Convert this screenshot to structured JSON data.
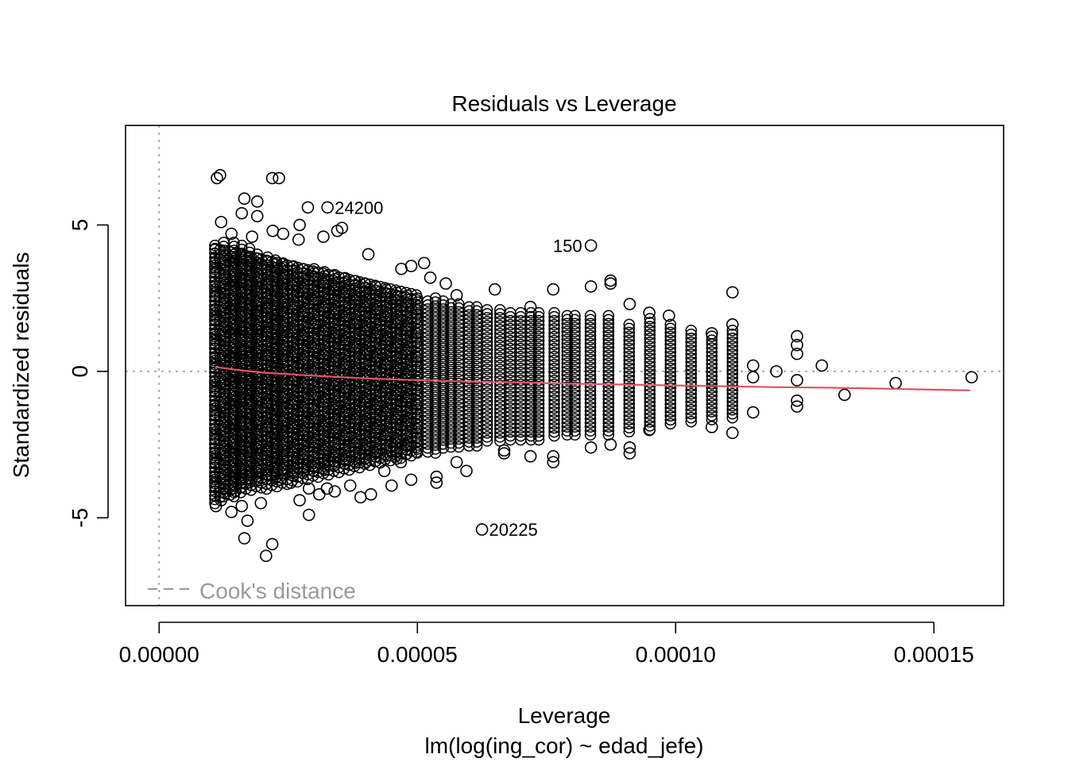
{
  "chart_data": {
    "type": "scatter",
    "title": "Residuals vs Leverage",
    "xlabel": "Leverage",
    "subtitle": "lm(log(ing_cor) ~ edad_jefe)",
    "ylabel": "Standardized residuals",
    "xlim": [
      -6.5e-06,
      0.0001635
    ],
    "ylim": [
      -8.0,
      8.4
    ],
    "x_ticks": [
      0.0,
      5e-05,
      0.0001,
      0.00015
    ],
    "x_tick_labels": [
      "0.00000",
      "0.00005",
      "0.00010",
      "0.00015"
    ],
    "y_ticks": [
      -5,
      0,
      5
    ],
    "y_tick_labels": [
      "-5",
      "0",
      "5"
    ],
    "reference_lines": {
      "x": 0,
      "y": 0,
      "style": "dotted",
      "color": "#aaaaaa"
    },
    "legend": {
      "label": "Cook's distance",
      "position": "bottom-left",
      "line_style": "dashed",
      "color": "#999999"
    },
    "point_color": "#000000",
    "smooth_color": "#DF536B",
    "smooth_line": {
      "x": [
        1.08e-05,
        1.5e-05,
        2e-05,
        3e-05,
        4e-05,
        5e-05,
        6e-05,
        7e-05,
        8e-05,
        9e-05,
        0.0001,
        0.00011,
        0.00012,
        0.00013,
        0.00014,
        0.000157
      ],
      "y": [
        0.15,
        0.05,
        -0.04,
        -0.15,
        -0.24,
        -0.3,
        -0.35,
        -0.38,
        -0.42,
        -0.45,
        -0.48,
        -0.51,
        -0.54,
        -0.56,
        -0.59,
        -0.65
      ]
    },
    "bands": [
      {
        "x": 1.08e-05,
        "lo": -4.6,
        "hi": 4.3
      },
      {
        "x": 1.25e-05,
        "lo": -4.4,
        "hi": 4.4
      },
      {
        "x": 1.45e-05,
        "lo": -4.3,
        "hi": 4.4
      },
      {
        "x": 1.6e-05,
        "lo": -4.0,
        "hi": 4.3
      },
      {
        "x": 1.75e-05,
        "lo": -3.9,
        "hi": 4.2
      },
      {
        "x": 1.9e-05,
        "lo": -3.8,
        "hi": 4.0
      },
      {
        "x": 2.1e-05,
        "lo": -3.7,
        "hi": 3.9
      },
      {
        "x": 2.25e-05,
        "lo": -3.7,
        "hi": 3.8
      },
      {
        "x": 2.4e-05,
        "lo": -3.6,
        "hi": 3.7
      },
      {
        "x": 2.6e-05,
        "lo": -3.6,
        "hi": 3.6
      },
      {
        "x": 2.8e-05,
        "lo": -3.5,
        "hi": 3.5
      },
      {
        "x": 3e-05,
        "lo": -3.5,
        "hi": 3.5
      },
      {
        "x": 3.2e-05,
        "lo": -3.4,
        "hi": 3.4
      },
      {
        "x": 3.4e-05,
        "lo": -3.3,
        "hi": 3.3
      },
      {
        "x": 3.6e-05,
        "lo": -3.2,
        "hi": 3.2
      },
      {
        "x": 3.8e-05,
        "lo": -3.2,
        "hi": 3.1
      },
      {
        "x": 4e-05,
        "lo": -3.1,
        "hi": 3.0
      },
      {
        "x": 4.2e-05,
        "lo": -3.1,
        "hi": 2.9
      },
      {
        "x": 4.4e-05,
        "lo": -3.0,
        "hi": 2.8
      },
      {
        "x": 4.6e-05,
        "lo": -3.0,
        "hi": 2.7
      },
      {
        "x": 4.8e-05,
        "lo": -2.9,
        "hi": 2.6
      },
      {
        "x": 5e-05,
        "lo": -2.9,
        "hi": 2.5
      },
      {
        "x": 5.2e-05,
        "lo": -2.8,
        "hi": 2.4
      },
      {
        "x": 5.35e-05,
        "lo": -2.8,
        "hi": 2.5
      },
      {
        "x": 5.5e-05,
        "lo": -2.7,
        "hi": 2.4
      },
      {
        "x": 5.65e-05,
        "lo": -2.7,
        "hi": 2.3
      },
      {
        "x": 5.8e-05,
        "lo": -2.6,
        "hi": 2.3
      },
      {
        "x": 6e-05,
        "lo": -2.6,
        "hi": 2.2
      },
      {
        "x": 6.15e-05,
        "lo": -2.6,
        "hi": 2.2
      },
      {
        "x": 6.35e-05,
        "lo": -2.5,
        "hi": 2.1
      },
      {
        "x": 6.6e-05,
        "lo": -2.5,
        "hi": 2.1
      },
      {
        "x": 6.8e-05,
        "lo": -2.4,
        "hi": 2.0
      },
      {
        "x": 7e-05,
        "lo": -2.4,
        "hi": 2.0
      },
      {
        "x": 7.2e-05,
        "lo": -2.4,
        "hi": 2.0
      },
      {
        "x": 7.35e-05,
        "lo": -2.4,
        "hi": 2.0
      },
      {
        "x": 7.65e-05,
        "lo": -2.3,
        "hi": 2.0
      },
      {
        "x": 7.9e-05,
        "lo": -2.3,
        "hi": 1.9
      },
      {
        "x": 8.05e-05,
        "lo": -2.3,
        "hi": 1.9
      },
      {
        "x": 8.35e-05,
        "lo": -2.2,
        "hi": 1.9
      },
      {
        "x": 8.7e-05,
        "lo": -2.2,
        "hi": 1.9
      },
      {
        "x": 9.1e-05,
        "lo": -2.1,
        "hi": 1.6
      },
      {
        "x": 9.5e-05,
        "lo": -2.0,
        "hi": 1.8
      },
      {
        "x": 9.9e-05,
        "lo": -1.9,
        "hi": 1.6
      },
      {
        "x": 0.000103,
        "lo": -1.8,
        "hi": 1.4
      },
      {
        "x": 0.000107,
        "lo": -1.7,
        "hi": 1.2
      },
      {
        "x": 0.000111,
        "lo": -1.7,
        "hi": 1.4
      }
    ],
    "points": [
      {
        "x": 1.12e-05,
        "y": 6.6
      },
      {
        "x": 1.18e-05,
        "y": 6.7
      },
      {
        "x": 2.19e-05,
        "y": 6.6
      },
      {
        "x": 2.32e-05,
        "y": 6.6
      },
      {
        "x": 1.65e-05,
        "y": 5.9
      },
      {
        "x": 1.9e-05,
        "y": 5.8
      },
      {
        "x": 1.6e-05,
        "y": 5.4
      },
      {
        "x": 1.9e-05,
        "y": 5.3
      },
      {
        "x": 1.2e-05,
        "y": 5.1
      },
      {
        "x": 2.88e-05,
        "y": 5.6
      },
      {
        "x": 3.26e-05,
        "y": 5.6
      },
      {
        "x": 3.54e-05,
        "y": 4.9
      },
      {
        "x": 3.45e-05,
        "y": 4.8
      },
      {
        "x": 2.72e-05,
        "y": 5.0
      },
      {
        "x": 3.18e-05,
        "y": 4.6
      },
      {
        "x": 2.7e-05,
        "y": 4.5
      },
      {
        "x": 2.2e-05,
        "y": 4.8
      },
      {
        "x": 2.4e-05,
        "y": 4.7
      },
      {
        "x": 1.4e-05,
        "y": 4.7
      },
      {
        "x": 1.8e-05,
        "y": 4.6
      },
      {
        "x": 4.05e-05,
        "y": 4.0
      },
      {
        "x": 4.69e-05,
        "y": 3.5
      },
      {
        "x": 4.88e-05,
        "y": 3.6
      },
      {
        "x": 5.13e-05,
        "y": 3.7
      },
      {
        "x": 5.25e-05,
        "y": 3.2
      },
      {
        "x": 5.55e-05,
        "y": 3.0
      },
      {
        "x": 5.76e-05,
        "y": 2.6
      },
      {
        "x": 6.5e-05,
        "y": 2.8
      },
      {
        "x": 8.36e-05,
        "y": 4.3
      },
      {
        "x": 8.36e-05,
        "y": 2.9
      },
      {
        "x": 8.74e-05,
        "y": 3.1
      },
      {
        "x": 8.74e-05,
        "y": 3.0
      },
      {
        "x": 9.11e-05,
        "y": 2.3
      },
      {
        "x": 7.63e-05,
        "y": 2.8
      },
      {
        "x": 7.19e-05,
        "y": 2.2
      },
      {
        "x": 9.49e-05,
        "y": 2.0
      },
      {
        "x": 9.87e-05,
        "y": 1.9
      },
      {
        "x": 0.000111,
        "y": 2.7
      },
      {
        "x": 0.000115,
        "y": 0.2
      },
      {
        "x": 0.000115,
        "y": -0.2
      },
      {
        "x": 0.000115,
        "y": -1.4
      },
      {
        "x": 0.0001195,
        "y": 0.0
      },
      {
        "x": 0.0001235,
        "y": 1.2
      },
      {
        "x": 0.0001235,
        "y": 0.9
      },
      {
        "x": 0.0001235,
        "y": 0.6
      },
      {
        "x": 0.0001235,
        "y": -0.3
      },
      {
        "x": 0.0001235,
        "y": -1.0
      },
      {
        "x": 0.0001235,
        "y": -1.2
      },
      {
        "x": 0.0001283,
        "y": 0.2
      },
      {
        "x": 0.0001327,
        "y": -0.8
      },
      {
        "x": 0.0001426,
        "y": -0.4
      },
      {
        "x": 0.0001573,
        "y": -0.2
      },
      {
        "x": 0.000111,
        "y": 1.6
      },
      {
        "x": 0.000111,
        "y": -2.1
      },
      {
        "x": 0.000107,
        "y": 1.3
      },
      {
        "x": 0.000107,
        "y": -1.9
      },
      {
        "x": 9.49e-05,
        "y": -2.0
      },
      {
        "x": 9.11e-05,
        "y": -2.8
      },
      {
        "x": 9.11e-05,
        "y": -2.6
      },
      {
        "x": 8.74e-05,
        "y": -2.5
      },
      {
        "x": 8.36e-05,
        "y": -2.6
      },
      {
        "x": 7.63e-05,
        "y": -3.1
      },
      {
        "x": 7.63e-05,
        "y": -2.9
      },
      {
        "x": 7.19e-05,
        "y": -2.9
      },
      {
        "x": 6.68e-05,
        "y": -2.7
      },
      {
        "x": 6.68e-05,
        "y": -2.8
      },
      {
        "x": 6.25e-05,
        "y": -5.4
      },
      {
        "x": 5.95e-05,
        "y": -3.4
      },
      {
        "x": 5.37e-05,
        "y": -3.6
      },
      {
        "x": 5.37e-05,
        "y": -3.8
      },
      {
        "x": 5.76e-05,
        "y": -3.1
      },
      {
        "x": 4.68e-05,
        "y": -3.1
      },
      {
        "x": 4.88e-05,
        "y": -3.7
      },
      {
        "x": 4.5e-05,
        "y": -3.9
      },
      {
        "x": 4.36e-05,
        "y": -3.4
      },
      {
        "x": 4.1e-05,
        "y": -4.2
      },
      {
        "x": 3.9e-05,
        "y": -4.3
      },
      {
        "x": 3.7e-05,
        "y": -3.9
      },
      {
        "x": 3.4e-05,
        "y": -4.1
      },
      {
        "x": 3.25e-05,
        "y": -4.0
      },
      {
        "x": 3.1e-05,
        "y": -4.2
      },
      {
        "x": 2.9e-05,
        "y": -4.0
      },
      {
        "x": 2.72e-05,
        "y": -4.4
      },
      {
        "x": 2.9e-05,
        "y": -4.9
      },
      {
        "x": 1.97e-05,
        "y": -4.5
      },
      {
        "x": 1.6e-05,
        "y": -4.6
      },
      {
        "x": 1.4e-05,
        "y": -4.8
      },
      {
        "x": 1.2e-05,
        "y": -4.4
      },
      {
        "x": 1.1e-05,
        "y": -4.6
      },
      {
        "x": 1.71e-05,
        "y": -5.1
      },
      {
        "x": 1.65e-05,
        "y": -5.7
      },
      {
        "x": 2.19e-05,
        "y": -5.9
      },
      {
        "x": 2.07e-05,
        "y": -6.3
      },
      {
        "x": 2.35e-05,
        "y": -3.7
      },
      {
        "x": 2.55e-05,
        "y": -3.8
      }
    ],
    "annotations": [
      {
        "label": "24200",
        "x": 3.26e-05,
        "y": 5.6,
        "side": "right"
      },
      {
        "label": "150",
        "x": 8.36e-05,
        "y": 4.3,
        "side": "left"
      },
      {
        "label": "20225",
        "x": 6.25e-05,
        "y": -5.4,
        "side": "right"
      }
    ]
  }
}
